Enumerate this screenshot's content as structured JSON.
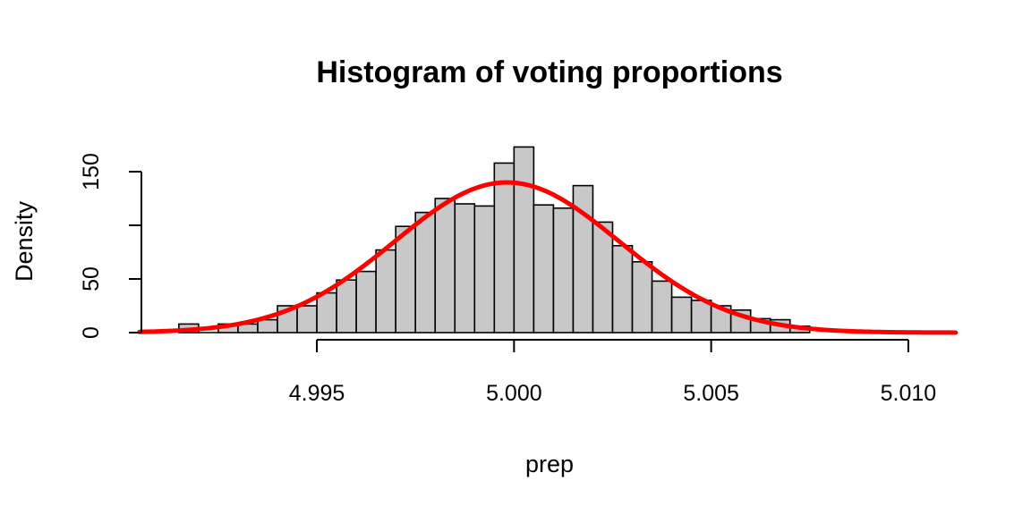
{
  "chart_data": {
    "type": "bar",
    "title": "Histogram of voting proportions",
    "xlabel": "prep",
    "ylabel": "Density",
    "bin_width": 0.0005,
    "bins": [
      {
        "start": 4.9915,
        "end": 4.992,
        "density": 8
      },
      {
        "start": 4.992,
        "end": 4.9925,
        "density": 0
      },
      {
        "start": 4.9925,
        "end": 4.993,
        "density": 8
      },
      {
        "start": 4.993,
        "end": 4.9935,
        "density": 8
      },
      {
        "start": 4.9935,
        "end": 4.994,
        "density": 12
      },
      {
        "start": 4.994,
        "end": 4.9945,
        "density": 25
      },
      {
        "start": 4.9945,
        "end": 4.995,
        "density": 25
      },
      {
        "start": 4.995,
        "end": 4.9955,
        "density": 37
      },
      {
        "start": 4.9955,
        "end": 4.996,
        "density": 49
      },
      {
        "start": 4.996,
        "end": 4.9965,
        "density": 57
      },
      {
        "start": 4.9965,
        "end": 4.997,
        "density": 77
      },
      {
        "start": 4.997,
        "end": 4.9975,
        "density": 99
      },
      {
        "start": 4.9975,
        "end": 4.998,
        "density": 112
      },
      {
        "start": 4.998,
        "end": 4.9985,
        "density": 125
      },
      {
        "start": 4.9985,
        "end": 4.999,
        "density": 120
      },
      {
        "start": 4.999,
        "end": 4.9995,
        "density": 118
      },
      {
        "start": 4.9995,
        "end": 5.0,
        "density": 158
      },
      {
        "start": 5.0,
        "end": 5.0005,
        "density": 173
      },
      {
        "start": 5.0005,
        "end": 5.001,
        "density": 119
      },
      {
        "start": 5.001,
        "end": 5.0015,
        "density": 116
      },
      {
        "start": 5.0015,
        "end": 5.002,
        "density": 137
      },
      {
        "start": 5.002,
        "end": 5.0025,
        "density": 103
      },
      {
        "start": 5.0025,
        "end": 5.003,
        "density": 81
      },
      {
        "start": 5.003,
        "end": 5.0035,
        "density": 66
      },
      {
        "start": 5.0035,
        "end": 5.004,
        "density": 48
      },
      {
        "start": 5.004,
        "end": 5.0045,
        "density": 33
      },
      {
        "start": 5.0045,
        "end": 5.005,
        "density": 30
      },
      {
        "start": 5.005,
        "end": 5.0055,
        "density": 25
      },
      {
        "start": 5.0055,
        "end": 5.006,
        "density": 21
      },
      {
        "start": 5.006,
        "end": 5.0065,
        "density": 13
      },
      {
        "start": 5.0065,
        "end": 5.007,
        "density": 12
      },
      {
        "start": 5.007,
        "end": 5.0075,
        "density": 6
      }
    ],
    "curve": {
      "type": "normal_density",
      "mean": 4.99982,
      "sd": 0.00285,
      "x_range": [
        4.9905,
        5.0112
      ],
      "color": "#ff0000"
    },
    "x_ticks": [
      {
        "value": 4.995,
        "label": "4.995"
      },
      {
        "value": 5.0,
        "label": "5.000"
      },
      {
        "value": 5.005,
        "label": "5.005"
      },
      {
        "value": 5.01,
        "label": "5.010"
      }
    ],
    "y_ticks": [
      {
        "value": 0,
        "label": "0"
      },
      {
        "value": 50,
        "label": "50"
      },
      {
        "value": 100,
        "label": ""
      },
      {
        "value": 150,
        "label": "150"
      }
    ],
    "xlim": [
      4.99055,
      5.01125
    ],
    "ylim": [
      0,
      150
    ],
    "grid": false,
    "bar_color": "#c8c8c8"
  }
}
